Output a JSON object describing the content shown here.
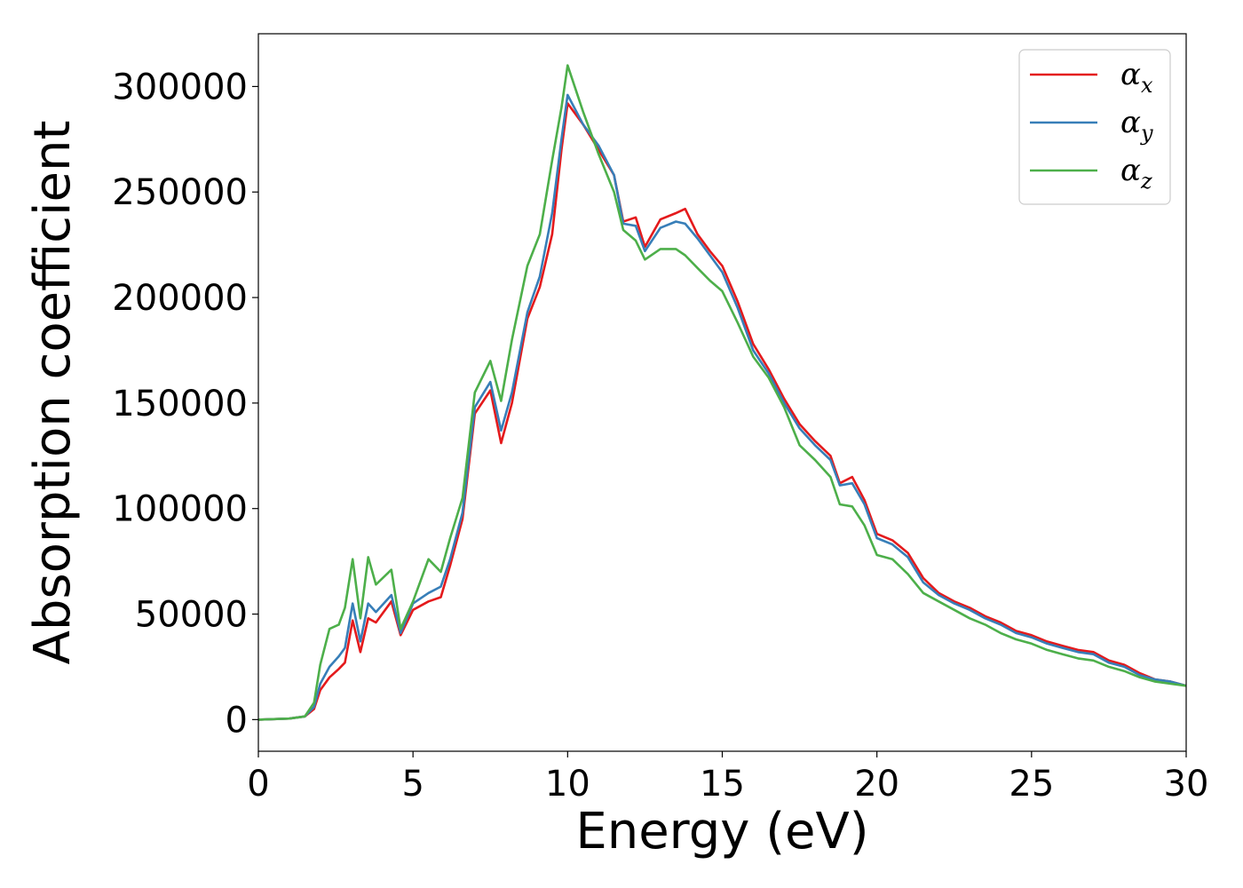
{
  "chart_data": {
    "type": "line",
    "title": "",
    "xlabel": "Energy (eV)",
    "ylabel": "Absorption coefficient",
    "xlim": [
      0,
      30
    ],
    "ylim": [
      -15000,
      325000
    ],
    "x_ticks": [
      "0",
      "5",
      "10",
      "15",
      "20",
      "25",
      "30"
    ],
    "y_ticks": [
      "0",
      "50000",
      "100000",
      "150000",
      "200000",
      "250000",
      "300000"
    ],
    "grid": false,
    "legend_position": "top-right",
    "series": [
      {
        "name": "α",
        "subscript": "x",
        "color": "#e41a1c",
        "points": [
          [
            0,
            0
          ],
          [
            1,
            500
          ],
          [
            1.5,
            1500
          ],
          [
            1.8,
            5000
          ],
          [
            2,
            14000
          ],
          [
            2.3,
            20000
          ],
          [
            2.6,
            24000
          ],
          [
            2.8,
            27000
          ],
          [
            3.05,
            47000
          ],
          [
            3.3,
            32000
          ],
          [
            3.55,
            48000
          ],
          [
            3.8,
            46000
          ],
          [
            4.3,
            56000
          ],
          [
            4.6,
            40000
          ],
          [
            5,
            52000
          ],
          [
            5.5,
            56000
          ],
          [
            5.9,
            58000
          ],
          [
            6.2,
            73000
          ],
          [
            6.6,
            95000
          ],
          [
            7,
            145000
          ],
          [
            7.5,
            156000
          ],
          [
            7.85,
            131000
          ],
          [
            8.2,
            150000
          ],
          [
            8.7,
            190000
          ],
          [
            9.1,
            205000
          ],
          [
            9.5,
            230000
          ],
          [
            9.8,
            270000
          ],
          [
            10,
            292000
          ],
          [
            10.5,
            282000
          ],
          [
            11,
            270000
          ],
          [
            11.5,
            258000
          ],
          [
            11.8,
            236000
          ],
          [
            12.2,
            238000
          ],
          [
            12.5,
            224000
          ],
          [
            13,
            237000
          ],
          [
            13.5,
            240000
          ],
          [
            13.8,
            242000
          ],
          [
            14.2,
            230000
          ],
          [
            14.6,
            222000
          ],
          [
            15,
            215000
          ],
          [
            15.5,
            198000
          ],
          [
            16,
            178000
          ],
          [
            16.5,
            166000
          ],
          [
            17,
            152000
          ],
          [
            17.5,
            140000
          ],
          [
            18,
            132000
          ],
          [
            18.5,
            125000
          ],
          [
            18.8,
            112000
          ],
          [
            19.2,
            115000
          ],
          [
            19.6,
            104000
          ],
          [
            20,
            88000
          ],
          [
            20.5,
            85000
          ],
          [
            21,
            79000
          ],
          [
            21.5,
            67000
          ],
          [
            22,
            60000
          ],
          [
            22.5,
            56000
          ],
          [
            23,
            53000
          ],
          [
            23.5,
            49000
          ],
          [
            24,
            46000
          ],
          [
            24.5,
            42000
          ],
          [
            25,
            40000
          ],
          [
            25.5,
            37000
          ],
          [
            26,
            35000
          ],
          [
            26.5,
            33000
          ],
          [
            27,
            32000
          ],
          [
            27.5,
            28000
          ],
          [
            28,
            26000
          ],
          [
            28.5,
            22000
          ],
          [
            29,
            19000
          ],
          [
            29.5,
            18000
          ],
          [
            30,
            16000
          ]
        ]
      },
      {
        "name": "α",
        "subscript": "y",
        "color": "#377eb8",
        "points": [
          [
            0,
            0
          ],
          [
            1,
            500
          ],
          [
            1.5,
            1500
          ],
          [
            1.8,
            6000
          ],
          [
            2,
            17000
          ],
          [
            2.3,
            25000
          ],
          [
            2.6,
            30000
          ],
          [
            2.8,
            34000
          ],
          [
            3.05,
            55000
          ],
          [
            3.3,
            37000
          ],
          [
            3.55,
            55000
          ],
          [
            3.8,
            51000
          ],
          [
            4.3,
            59000
          ],
          [
            4.6,
            41000
          ],
          [
            5,
            55000
          ],
          [
            5.5,
            60000
          ],
          [
            5.9,
            63000
          ],
          [
            6.2,
            76000
          ],
          [
            6.6,
            98000
          ],
          [
            7,
            148000
          ],
          [
            7.5,
            160000
          ],
          [
            7.85,
            137000
          ],
          [
            8.2,
            155000
          ],
          [
            8.7,
            193000
          ],
          [
            9.1,
            210000
          ],
          [
            9.5,
            240000
          ],
          [
            9.8,
            275000
          ],
          [
            10,
            296000
          ],
          [
            10.5,
            282000
          ],
          [
            11,
            272000
          ],
          [
            11.5,
            258000
          ],
          [
            11.8,
            235000
          ],
          [
            12.2,
            234000
          ],
          [
            12.5,
            222000
          ],
          [
            13,
            233000
          ],
          [
            13.5,
            236000
          ],
          [
            13.8,
            235000
          ],
          [
            14.2,
            228000
          ],
          [
            14.6,
            220000
          ],
          [
            15,
            212000
          ],
          [
            15.5,
            195000
          ],
          [
            16,
            175000
          ],
          [
            16.5,
            164000
          ],
          [
            17,
            150000
          ],
          [
            17.5,
            138000
          ],
          [
            18,
            130000
          ],
          [
            18.5,
            123000
          ],
          [
            18.8,
            111000
          ],
          [
            19.2,
            112000
          ],
          [
            19.6,
            102000
          ],
          [
            20,
            86000
          ],
          [
            20.5,
            83000
          ],
          [
            21,
            77000
          ],
          [
            21.5,
            65000
          ],
          [
            22,
            59000
          ],
          [
            22.5,
            55000
          ],
          [
            23,
            52000
          ],
          [
            23.5,
            48000
          ],
          [
            24,
            45000
          ],
          [
            24.5,
            41000
          ],
          [
            25,
            39000
          ],
          [
            25.5,
            36000
          ],
          [
            26,
            34000
          ],
          [
            26.5,
            32000
          ],
          [
            27,
            31000
          ],
          [
            27.5,
            27000
          ],
          [
            28,
            25000
          ],
          [
            28.5,
            21000
          ],
          [
            29,
            19000
          ],
          [
            29.5,
            18000
          ],
          [
            30,
            16000
          ]
        ]
      },
      {
        "name": "α",
        "subscript": "z",
        "color": "#4daf4a",
        "points": [
          [
            0,
            0
          ],
          [
            1,
            500
          ],
          [
            1.5,
            1500
          ],
          [
            1.8,
            8000
          ],
          [
            2,
            26000
          ],
          [
            2.3,
            43000
          ],
          [
            2.6,
            45000
          ],
          [
            2.8,
            53000
          ],
          [
            3.05,
            76000
          ],
          [
            3.3,
            48000
          ],
          [
            3.55,
            77000
          ],
          [
            3.8,
            64000
          ],
          [
            4.3,
            71000
          ],
          [
            4.6,
            43000
          ],
          [
            5,
            56000
          ],
          [
            5.5,
            76000
          ],
          [
            5.9,
            70000
          ],
          [
            6.2,
            86000
          ],
          [
            6.6,
            105000
          ],
          [
            7,
            155000
          ],
          [
            7.5,
            170000
          ],
          [
            7.85,
            151000
          ],
          [
            8.2,
            180000
          ],
          [
            8.7,
            215000
          ],
          [
            9.1,
            230000
          ],
          [
            9.5,
            265000
          ],
          [
            9.8,
            290000
          ],
          [
            10,
            310000
          ],
          [
            10.5,
            288000
          ],
          [
            11,
            268000
          ],
          [
            11.5,
            250000
          ],
          [
            11.8,
            232000
          ],
          [
            12.2,
            227000
          ],
          [
            12.5,
            218000
          ],
          [
            13,
            223000
          ],
          [
            13.5,
            223000
          ],
          [
            13.8,
            220000
          ],
          [
            14.2,
            214000
          ],
          [
            14.6,
            208000
          ],
          [
            15,
            203000
          ],
          [
            15.5,
            188000
          ],
          [
            16,
            172000
          ],
          [
            16.5,
            162000
          ],
          [
            17,
            148000
          ],
          [
            17.5,
            130000
          ],
          [
            18,
            123000
          ],
          [
            18.5,
            115000
          ],
          [
            18.8,
            102000
          ],
          [
            19.2,
            101000
          ],
          [
            19.6,
            92000
          ],
          [
            20,
            78000
          ],
          [
            20.5,
            76000
          ],
          [
            21,
            69000
          ],
          [
            21.5,
            60000
          ],
          [
            22,
            56000
          ],
          [
            22.5,
            52000
          ],
          [
            23,
            48000
          ],
          [
            23.5,
            45000
          ],
          [
            24,
            41000
          ],
          [
            24.5,
            38000
          ],
          [
            25,
            36000
          ],
          [
            25.5,
            33000
          ],
          [
            26,
            31000
          ],
          [
            26.5,
            29000
          ],
          [
            27,
            28000
          ],
          [
            27.5,
            25000
          ],
          [
            28,
            23000
          ],
          [
            28.5,
            20000
          ],
          [
            29,
            18000
          ],
          [
            29.5,
            17000
          ],
          [
            30,
            16000
          ]
        ]
      }
    ]
  }
}
